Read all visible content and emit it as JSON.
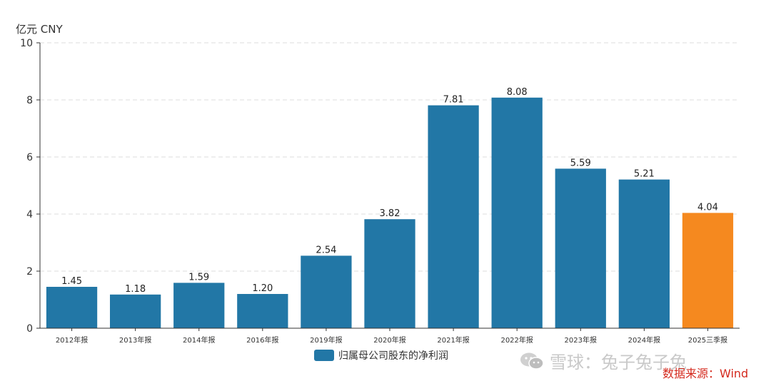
{
  "chart_data": {
    "type": "bar",
    "unit_label": "亿元  CNY",
    "categories": [
      "2012年报",
      "2013年报",
      "2014年报",
      "2016年报",
      "2019年报",
      "2020年报",
      "2021年报",
      "2022年报",
      "2023年报",
      "2024年报",
      "2025三季报"
    ],
    "values": [
      1.45,
      1.18,
      1.59,
      1.2,
      2.54,
      3.82,
      7.81,
      8.08,
      5.59,
      5.21,
      4.04
    ],
    "value_labels": [
      "1.45",
      "1.18",
      "1.59",
      "1.20",
      "2.54",
      "3.82",
      "7.81",
      "8.08",
      "5.59",
      "5.21",
      "4.04"
    ],
    "series": [
      {
        "name": "归属母公司股东的净利润"
      }
    ],
    "ylim": [
      0,
      10
    ],
    "yticks": [
      0,
      2,
      4,
      6,
      8,
      10
    ],
    "grid": true,
    "legend_position": "bottom-center",
    "colors": {
      "bar": "#2277a6",
      "highlight_bar": "#f5891f",
      "grid": "#dddddd",
      "axis": "#333333"
    },
    "highlight_index": 10
  },
  "watermark": {
    "text": "雪球：兔子兔子兔",
    "icon": "wechat-icon"
  },
  "source_text": "数据来源：Wind"
}
